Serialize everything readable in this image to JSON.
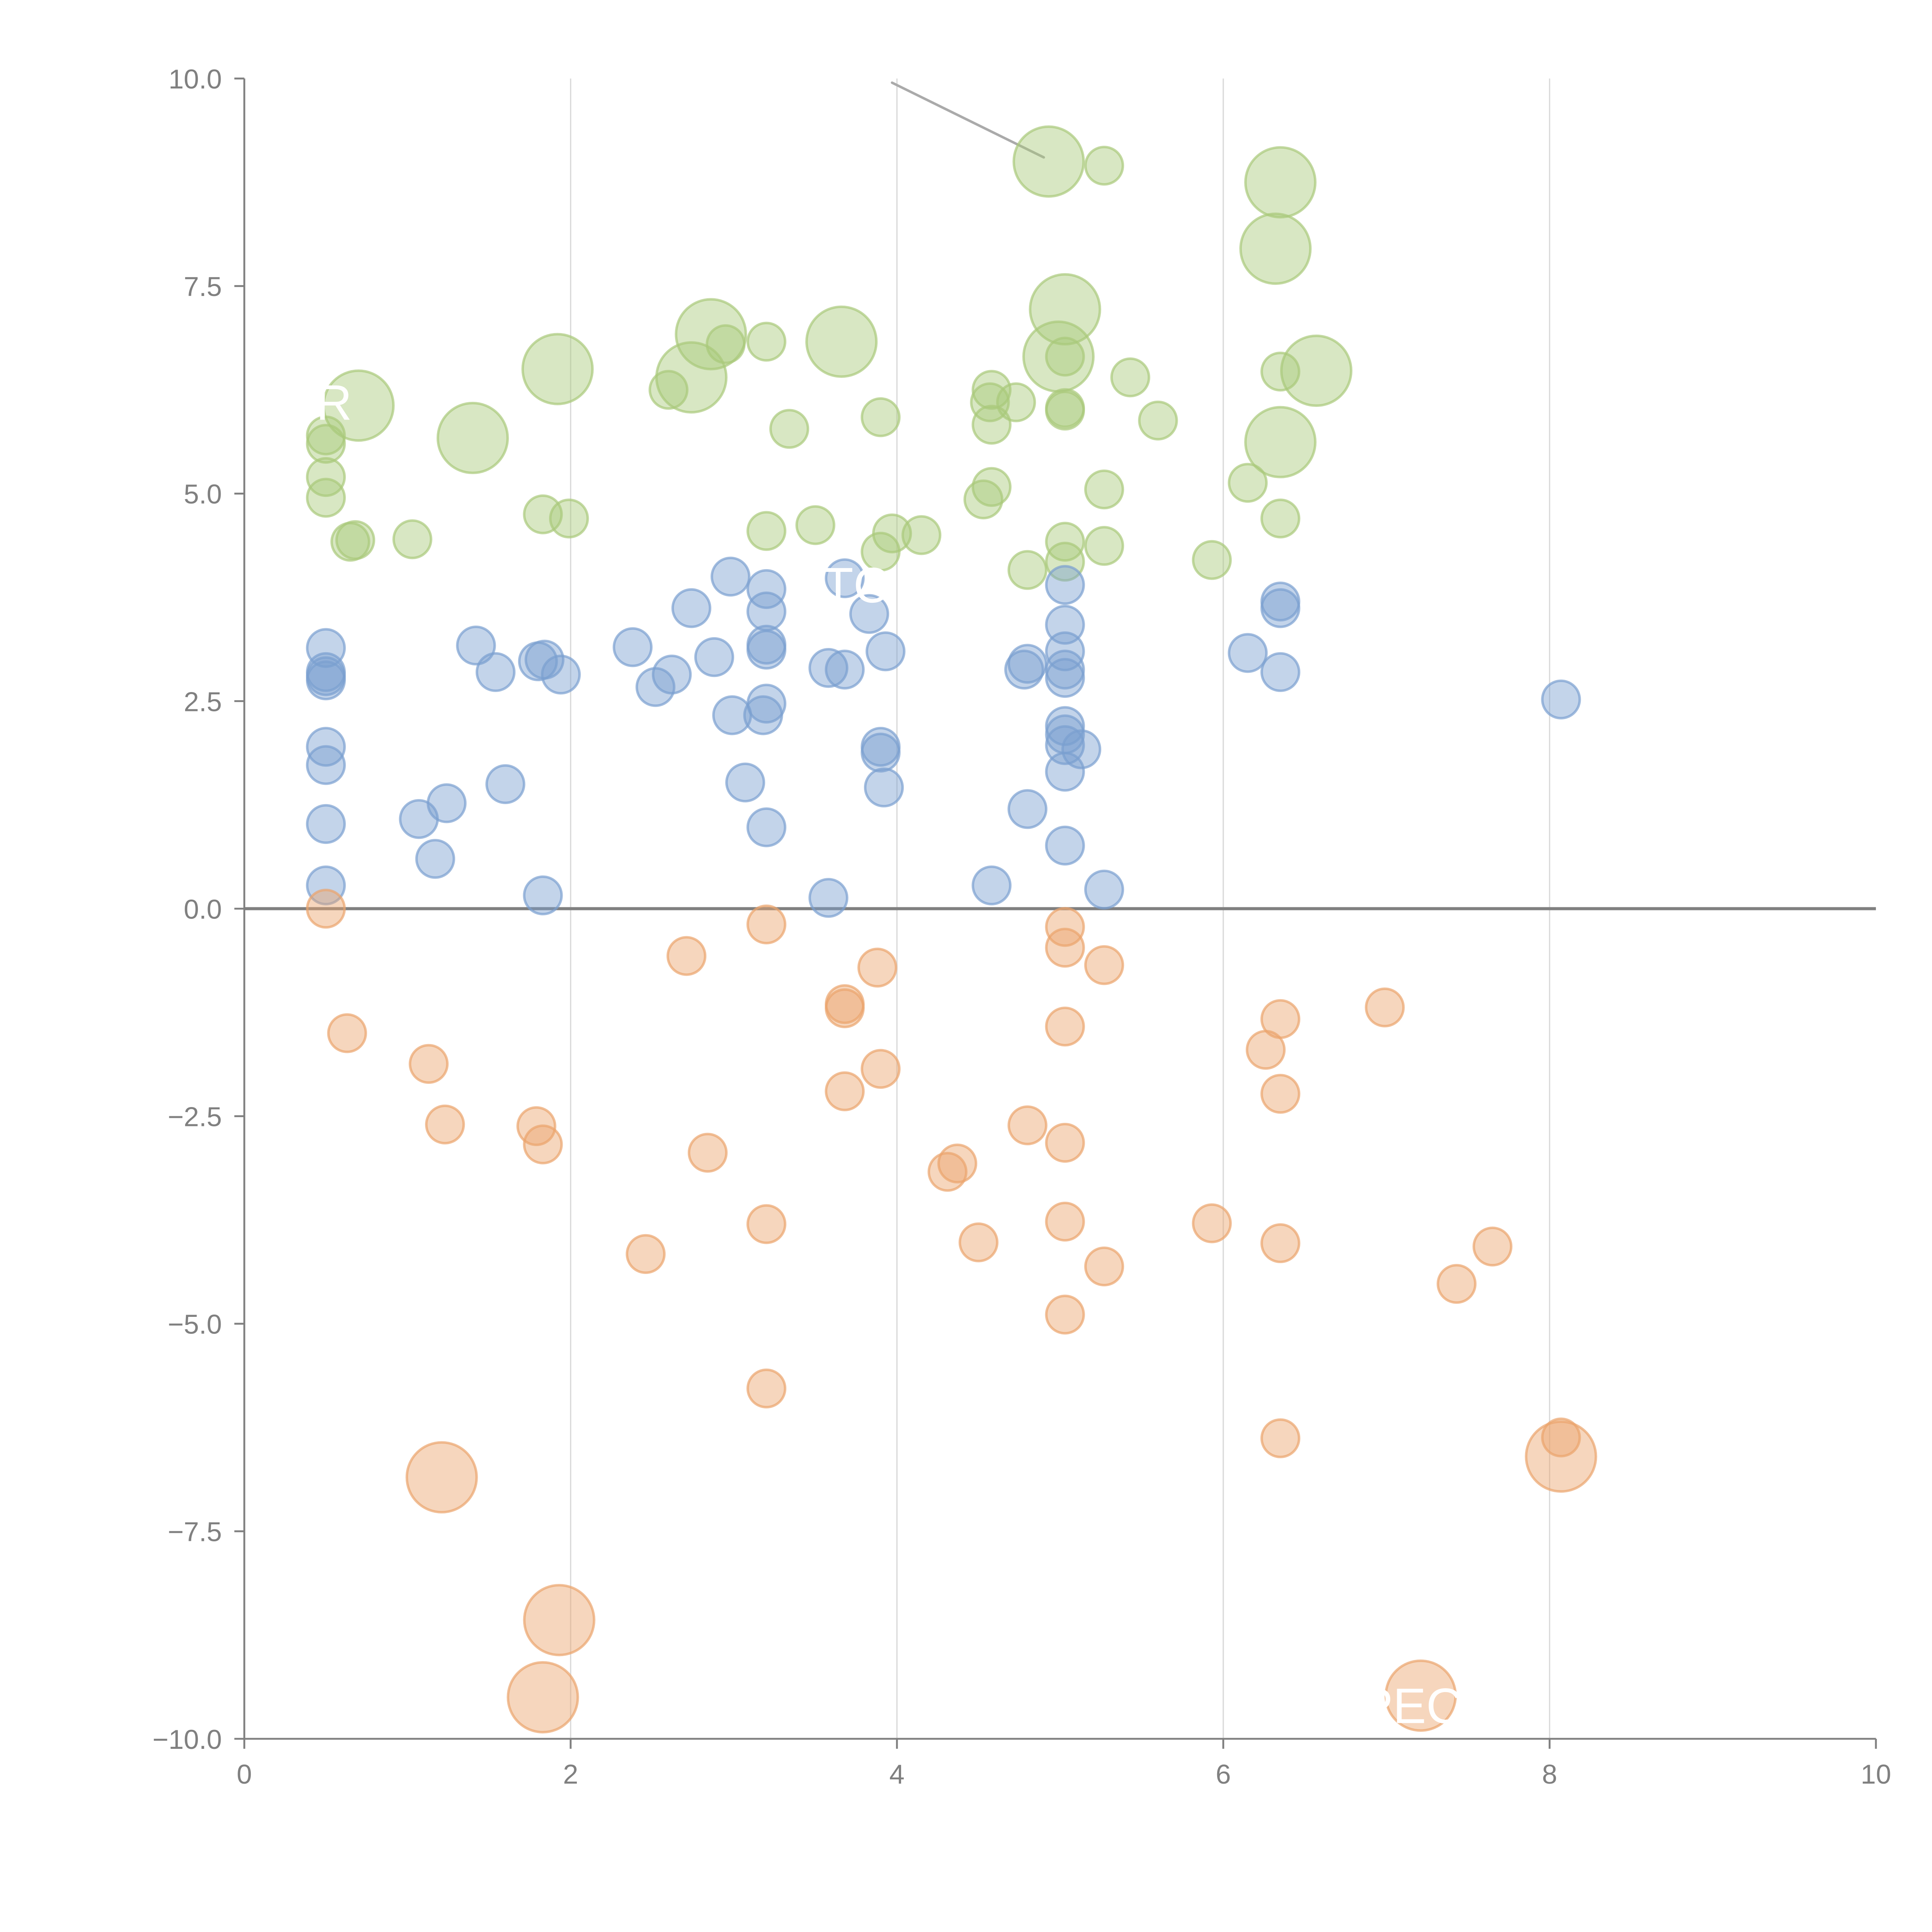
{
  "chart_data": {
    "type": "scatter",
    "title": "",
    "xlabel": "",
    "ylabel": "",
    "xlim": [
      0,
      10
    ],
    "ylim": [
      -10,
      10
    ],
    "x_ticks": [
      "0",
      "2",
      "4",
      "6",
      "8",
      "10"
    ],
    "y_ticks": [
      "10.0",
      "7.5",
      "5.0",
      "2.5",
      "0.0",
      "−2.5",
      "−5.0",
      "−7.5",
      "−10.0"
    ],
    "grid": "vertical-only",
    "zero_line": true,
    "legend": "none",
    "colors": {
      "green": "#a9c97a",
      "blue": "#7b9fd0",
      "orange": "#eba46c",
      "axis": "#808080",
      "grid": "#d9d9d9"
    },
    "annotations": [
      {
        "text": "R",
        "x": 0.55,
        "y": 6.1
      },
      {
        "text": "TC",
        "x": 3.75,
        "y": 3.9
      },
      {
        "text": "PEC",
        "x": 7.15,
        "y": -9.6
      }
    ],
    "leader_line": {
      "from": [
        3.97,
        9.95
      ],
      "to": [
        4.9,
        9.05
      ]
    },
    "series": [
      {
        "name": "green",
        "color": "#a9c97a",
        "points": [
          [
            4.93,
            9.0,
            "L"
          ],
          [
            5.27,
            8.95,
            "S"
          ],
          [
            6.35,
            8.75,
            "L"
          ],
          [
            6.32,
            7.95,
            "L"
          ],
          [
            5.03,
            7.22,
            "L"
          ],
          [
            2.86,
            6.92,
            "L"
          ],
          [
            3.66,
            6.83,
            "L"
          ],
          [
            2.95,
            6.8,
            "S"
          ],
          [
            3.2,
            6.83,
            "S"
          ],
          [
            4.99,
            6.65,
            "L"
          ],
          [
            5.03,
            6.65,
            "S"
          ],
          [
            1.92,
            6.5,
            "L"
          ],
          [
            2.74,
            6.4,
            "L"
          ],
          [
            6.57,
            6.48,
            "L"
          ],
          [
            6.35,
            6.47,
            "S"
          ],
          [
            5.43,
            6.4,
            "S"
          ],
          [
            2.6,
            6.25,
            "S"
          ],
          [
            0.7,
            6.06,
            "L"
          ],
          [
            4.58,
            6.25,
            "S"
          ],
          [
            4.57,
            6.1,
            "S"
          ],
          [
            4.73,
            6.1,
            "S"
          ],
          [
            5.03,
            6.03,
            "S"
          ],
          [
            5.03,
            6.0,
            "S"
          ],
          [
            3.9,
            5.92,
            "S"
          ],
          [
            5.6,
            5.88,
            "S"
          ],
          [
            4.58,
            5.83,
            "S"
          ],
          [
            3.34,
            5.78,
            "S"
          ],
          [
            0.5,
            5.7,
            "S"
          ],
          [
            0.5,
            5.6,
            "S"
          ],
          [
            1.4,
            5.67,
            "L"
          ],
          [
            6.35,
            5.62,
            "L"
          ],
          [
            0.5,
            5.2,
            "S"
          ],
          [
            6.15,
            5.13,
            "S"
          ],
          [
            4.58,
            5.08,
            "S"
          ],
          [
            5.27,
            5.05,
            "S"
          ],
          [
            0.5,
            4.95,
            "S"
          ],
          [
            4.53,
            4.93,
            "S"
          ],
          [
            1.83,
            4.75,
            "S"
          ],
          [
            1.99,
            4.7,
            "S"
          ],
          [
            6.35,
            4.7,
            "S"
          ],
          [
            3.5,
            4.62,
            "S"
          ],
          [
            3.2,
            4.55,
            "S"
          ],
          [
            3.97,
            4.52,
            "S"
          ],
          [
            4.15,
            4.5,
            "S"
          ],
          [
            0.65,
            4.42,
            "S"
          ],
          [
            0.68,
            4.44,
            "S"
          ],
          [
            1.03,
            4.45,
            "S"
          ],
          [
            5.03,
            4.42,
            "S"
          ],
          [
            5.27,
            4.37,
            "S"
          ],
          [
            3.9,
            4.3,
            "S"
          ],
          [
            5.93,
            4.2,
            "S"
          ],
          [
            5.03,
            4.18,
            "S"
          ],
          [
            4.8,
            4.08,
            "S"
          ]
        ]
      },
      {
        "name": "blue",
        "color": "#7b9fd0",
        "points": [
          [
            3.68,
            3.98,
            "S"
          ],
          [
            2.98,
            4.0,
            "S"
          ],
          [
            3.2,
            3.85,
            "S"
          ],
          [
            5.03,
            3.9,
            "S"
          ],
          [
            6.35,
            3.7,
            "S"
          ],
          [
            2.74,
            3.62,
            "S"
          ],
          [
            3.2,
            3.58,
            "S"
          ],
          [
            6.35,
            3.62,
            "S"
          ],
          [
            3.83,
            3.55,
            "S"
          ],
          [
            5.03,
            3.42,
            "S"
          ],
          [
            0.5,
            3.14,
            "S"
          ],
          [
            1.42,
            3.17,
            "S"
          ],
          [
            2.38,
            3.15,
            "S"
          ],
          [
            3.2,
            3.18,
            "S"
          ],
          [
            3.2,
            3.12,
            "S"
          ],
          [
            3.93,
            3.1,
            "S"
          ],
          [
            5.03,
            3.1,
            "S"
          ],
          [
            6.15,
            3.08,
            "S"
          ],
          [
            1.8,
            2.98,
            "S"
          ],
          [
            1.84,
            3.0,
            "S"
          ],
          [
            2.88,
            3.03,
            "S"
          ],
          [
            4.8,
            2.95,
            "S"
          ],
          [
            4.78,
            2.88,
            "S"
          ],
          [
            5.03,
            2.88,
            "S"
          ],
          [
            3.58,
            2.9,
            "S"
          ],
          [
            3.68,
            2.88,
            "S"
          ],
          [
            0.5,
            2.85,
            "S"
          ],
          [
            0.5,
            2.8,
            "S"
          ],
          [
            0.5,
            2.75,
            "S"
          ],
          [
            1.54,
            2.85,
            "S"
          ],
          [
            1.94,
            2.82,
            "S"
          ],
          [
            2.62,
            2.82,
            "S"
          ],
          [
            5.03,
            2.78,
            "S"
          ],
          [
            6.35,
            2.85,
            "S"
          ],
          [
            2.52,
            2.67,
            "S"
          ],
          [
            8.07,
            2.52,
            "S"
          ],
          [
            3.2,
            2.47,
            "S"
          ],
          [
            2.99,
            2.33,
            "S"
          ],
          [
            3.18,
            2.33,
            "S"
          ],
          [
            5.03,
            2.2,
            "S"
          ],
          [
            5.03,
            2.1,
            "S"
          ],
          [
            5.03,
            1.97,
            "S"
          ],
          [
            0.5,
            1.95,
            "S"
          ],
          [
            3.9,
            1.95,
            "S"
          ],
          [
            3.9,
            1.88,
            "S"
          ],
          [
            5.13,
            1.92,
            "S"
          ],
          [
            0.5,
            1.73,
            "S"
          ],
          [
            5.03,
            1.65,
            "S"
          ],
          [
            1.6,
            1.5,
            "S"
          ],
          [
            3.07,
            1.52,
            "S"
          ],
          [
            3.92,
            1.46,
            "S"
          ],
          [
            1.24,
            1.27,
            "S"
          ],
          [
            4.8,
            1.2,
            "S"
          ],
          [
            1.07,
            1.08,
            "S"
          ],
          [
            0.5,
            1.02,
            "S"
          ],
          [
            3.2,
            0.98,
            "S"
          ],
          [
            5.03,
            0.76,
            "S"
          ],
          [
            1.17,
            0.6,
            "S"
          ],
          [
            0.5,
            0.28,
            "S"
          ],
          [
            4.58,
            0.28,
            "S"
          ],
          [
            5.27,
            0.23,
            "S"
          ],
          [
            1.83,
            0.16,
            "S"
          ],
          [
            3.58,
            0.13,
            "S"
          ]
        ]
      },
      {
        "name": "orange",
        "color": "#eba46c",
        "points": [
          [
            0.5,
            0.0,
            "S"
          ],
          [
            3.2,
            -0.19,
            "S"
          ],
          [
            5.03,
            -0.22,
            "S"
          ],
          [
            5.03,
            -0.47,
            "S"
          ],
          [
            2.71,
            -0.57,
            "S"
          ],
          [
            5.27,
            -0.68,
            "S"
          ],
          [
            3.88,
            -0.71,
            "S"
          ],
          [
            3.68,
            -1.15,
            "S"
          ],
          [
            3.68,
            -1.2,
            "S"
          ],
          [
            6.99,
            -1.19,
            "S"
          ],
          [
            6.35,
            -1.33,
            "S"
          ],
          [
            5.03,
            -1.42,
            "S"
          ],
          [
            0.63,
            -1.5,
            "S"
          ],
          [
            6.26,
            -1.7,
            "S"
          ],
          [
            1.13,
            -1.87,
            "S"
          ],
          [
            3.9,
            -1.93,
            "S"
          ],
          [
            3.68,
            -2.2,
            "S"
          ],
          [
            6.35,
            -2.23,
            "S"
          ],
          [
            1.23,
            -2.6,
            "S"
          ],
          [
            1.79,
            -2.62,
            "S"
          ],
          [
            4.8,
            -2.61,
            "S"
          ],
          [
            1.83,
            -2.84,
            "S"
          ],
          [
            5.03,
            -2.82,
            "S"
          ],
          [
            2.84,
            -2.94,
            "S"
          ],
          [
            4.37,
            -3.07,
            "S"
          ],
          [
            4.31,
            -3.17,
            "S"
          ],
          [
            3.2,
            -3.8,
            "S"
          ],
          [
            5.03,
            -3.77,
            "S"
          ],
          [
            5.93,
            -3.79,
            "S"
          ],
          [
            4.5,
            -4.02,
            "S"
          ],
          [
            6.35,
            -4.03,
            "S"
          ],
          [
            7.65,
            -4.07,
            "S"
          ],
          [
            2.46,
            -4.16,
            "S"
          ],
          [
            5.27,
            -4.31,
            "S"
          ],
          [
            7.43,
            -4.52,
            "S"
          ],
          [
            5.03,
            -4.89,
            "S"
          ],
          [
            3.2,
            -5.78,
            "S"
          ],
          [
            6.35,
            -6.38,
            "S"
          ],
          [
            8.07,
            -6.37,
            "S"
          ],
          [
            8.07,
            -6.6,
            "L"
          ],
          [
            1.21,
            -6.85,
            "L"
          ],
          [
            1.93,
            -8.57,
            "L"
          ],
          [
            1.83,
            -9.5,
            "L"
          ],
          [
            7.21,
            -9.48,
            "L"
          ]
        ]
      }
    ]
  }
}
